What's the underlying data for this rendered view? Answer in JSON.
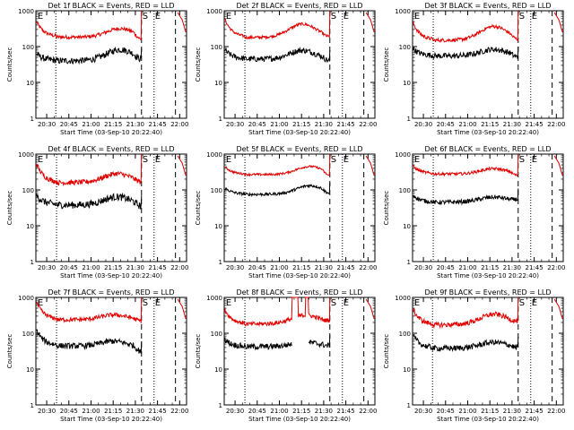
{
  "chart_data": {
    "type": "line",
    "layout": "3x3 grid",
    "shared": {
      "ylabel": "Counts/sec",
      "xlabel": "Start Time (03-Sep-10 20:22:40)",
      "yscale": "log",
      "ylim": [
        1,
        1000
      ],
      "ytick_labels": [
        "1",
        "10",
        "100",
        "1000"
      ],
      "xlim_minutes": [
        0,
        102
      ],
      "xtick_labels": [
        "20:30",
        "20:45",
        "21:00",
        "21:15",
        "21:30",
        "21:45",
        "22:00"
      ],
      "grid": false,
      "legend": "none (described in titles)",
      "colors": {
        "events": "#000000",
        "lld": "#e00000",
        "markers": "#000000"
      },
      "markers": [
        {
          "label": "E",
          "x_min": 0.5,
          "style": "none"
        },
        {
          "label": "S",
          "x_min": 71.5,
          "style": "dashed"
        },
        {
          "label": "E",
          "x_min": 80.0,
          "style": "dotted"
        }
      ],
      "extra_lines": [
        {
          "x_min": 13.5,
          "style": "dotted",
          "note": "varies by panel"
        },
        {
          "x_min": 94.5,
          "style": "dashed"
        }
      ]
    },
    "panels": [
      {
        "title": "Det 1f BLACK = Events, RED = LLD",
        "red": {
          "start": 550,
          "mid_low": 185,
          "hump_peak": 330,
          "hump_center": 57,
          "end": 160,
          "noise": 0.05
        },
        "black": {
          "start": 65,
          "mid_low": 40,
          "hump_peak": 80,
          "hump_center": 57,
          "end": 45,
          "noise": 0.09
        },
        "dotted_x": 13.5
      },
      {
        "title": "Det 2f BLACK = Events, RED = LLD",
        "red": {
          "start": 650,
          "mid_low": 180,
          "hump_peak": 420,
          "hump_center": 53,
          "end": 190,
          "noise": 0.04
        },
        "black": {
          "start": 85,
          "mid_low": 45,
          "hump_peak": 80,
          "hump_center": 53,
          "end": 40,
          "noise": 0.08
        },
        "dotted_x": 14.0
      },
      {
        "title": "Det 3f BLACK = Events, RED = LLD",
        "red": {
          "start": 500,
          "mid_low": 150,
          "hump_peak": 360,
          "hump_center": 55,
          "end": 160,
          "noise": 0.05
        },
        "black": {
          "start": 90,
          "mid_low": 55,
          "hump_peak": 85,
          "hump_center": 55,
          "end": 50,
          "noise": 0.08
        },
        "dotted_x": 14.0
      },
      {
        "title": "Det 4f BLACK = Events, RED = LLD",
        "red": {
          "start": 600,
          "mid_low": 160,
          "hump_peak": 280,
          "hump_center": 55,
          "end": 170,
          "noise": 0.07
        },
        "black": {
          "start": 75,
          "mid_low": 38,
          "hump_peak": 65,
          "hump_center": 55,
          "end": 35,
          "noise": 0.1
        },
        "dotted_x": 14.0
      },
      {
        "title": "Det 5f BLACK = Events, RED = LLD",
        "red": {
          "start": 470,
          "mid_low": 270,
          "hump_peak": 460,
          "hump_center": 58,
          "end": 250,
          "noise": 0.03
        },
        "black": {
          "start": 120,
          "mid_low": 75,
          "hump_peak": 130,
          "hump_center": 58,
          "end": 80,
          "noise": 0.04
        },
        "dotted_x": 14.0
      },
      {
        "title": "Det 6f BLACK = Events, RED = LLD",
        "red": {
          "start": 480,
          "mid_low": 280,
          "hump_peak": 400,
          "hump_center": 55,
          "end": 250,
          "noise": 0.04
        },
        "black": {
          "start": 75,
          "mid_low": 45,
          "hump_peak": 60,
          "hump_center": 55,
          "end": 55,
          "noise": 0.06
        },
        "dotted_x": 14.0
      },
      {
        "title": "Det 7f BLACK = Events, RED = LLD",
        "red": {
          "start": 800,
          "mid_low": 240,
          "hump_peak": 330,
          "hump_center": 53,
          "end": 220,
          "noise": 0.06
        },
        "black": {
          "start": 130,
          "mid_low": 45,
          "hump_peak": 65,
          "hump_center": 53,
          "end": 30,
          "noise": 0.08
        },
        "dotted_x": 14.0
      },
      {
        "title": "Det 8f BLACK = Events, RED = LLD",
        "red": {
          "start": 500,
          "mid_low": 180,
          "hump_peak": 300,
          "hump_center": 55,
          "end": 230,
          "noise": 0.06,
          "spikes": [
            {
              "from": 46,
              "to": 50,
              "value": 1000
            },
            {
              "from": 55,
              "to": 57,
              "value": 1000
            }
          ]
        },
        "black": {
          "start": 70,
          "mid_low": 42,
          "hump_peak": 55,
          "hump_center": 55,
          "end": 45,
          "noise": 0.08,
          "gaps": [
            {
              "from": 46,
              "to": 57
            }
          ]
        },
        "dotted_x": 14.0
      },
      {
        "title": "Det 9f BLACK = Events, RED = LLD",
        "red": {
          "start": 500,
          "mid_low": 170,
          "hump_peak": 320,
          "hump_center": 55,
          "end": 220,
          "noise": 0.07
        },
        "black": {
          "start": 90,
          "mid_low": 38,
          "hump_peak": 55,
          "hump_center": 55,
          "end": 40,
          "noise": 0.08
        },
        "dotted_x": 13.5
      }
    ]
  }
}
